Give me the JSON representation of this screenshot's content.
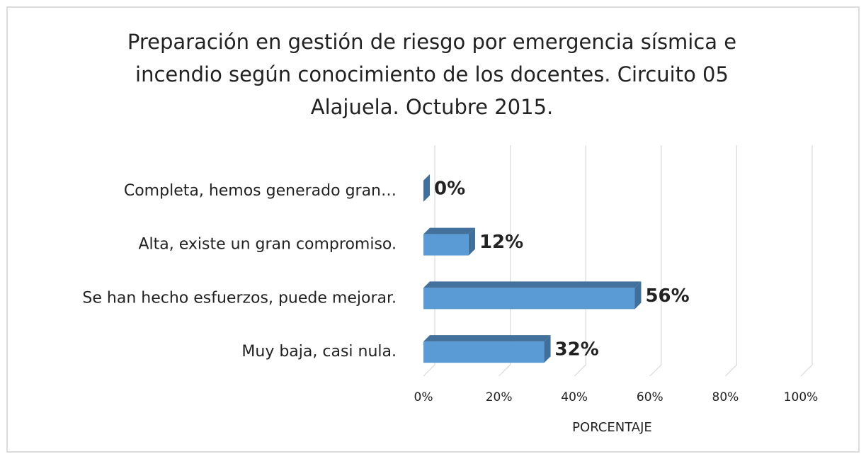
{
  "chart_data": {
    "type": "bar3d_horizontal",
    "title": "Preparación en gestión de riesgo por emergencia sísmica e incendio según conocimiento de los docentes. Circuito 05 Alajuela. Octubre 2015.",
    "categories": [
      "Completa, hemos generado gran…",
      "Alta, existe un gran compromiso.",
      "Se han hecho esfuerzos, puede mejorar.",
      "Muy baja, casi nula."
    ],
    "values": [
      0,
      12,
      56,
      32
    ],
    "value_labels": [
      "0%",
      "12%",
      "56%",
      "32%"
    ],
    "color": "#5b9bd5",
    "xlabel": "PORCENTAJE",
    "xlim": [
      0,
      100
    ],
    "xticks": [
      {
        "value": 0,
        "label": "0%"
      },
      {
        "value": 20,
        "label": "20%"
      },
      {
        "value": 40,
        "label": "40%"
      },
      {
        "value": 60,
        "label": "60%"
      },
      {
        "value": 80,
        "label": "80%"
      },
      {
        "value": 100,
        "label": "100%"
      }
    ],
    "grid": true
  }
}
